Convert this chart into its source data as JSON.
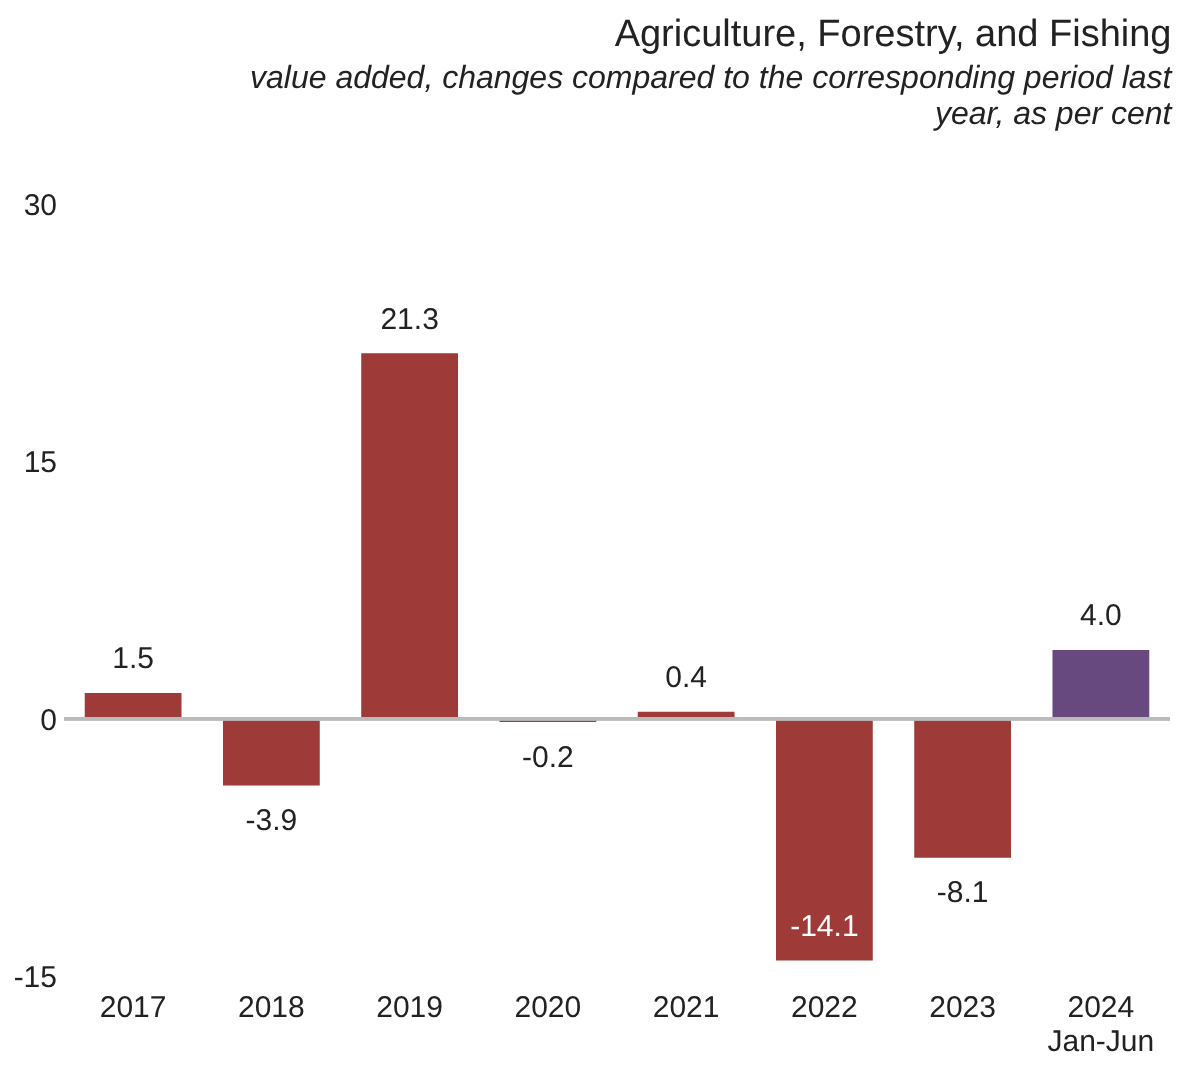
{
  "chart_data": {
    "type": "bar",
    "title": "Agriculture, Forestry, and Fishing",
    "subtitle": "value added, changes compared to the corresponding period last year, as per cent",
    "categories": [
      "2017",
      "2018",
      "2019",
      "2020",
      "2021",
      "2022",
      "2023",
      "2024\nJan-Jun"
    ],
    "values": [
      1.5,
      -3.9,
      21.3,
      -0.2,
      0.4,
      -14.1,
      -8.1,
      4.0
    ],
    "value_labels": [
      "1.5",
      "-3.9",
      "21.3",
      "-0.2",
      "0.4",
      "-14.1",
      "-8.1",
      "4.0"
    ],
    "colors": [
      "#9e3b38",
      "#9e3b38",
      "#9e3b38",
      "#9e3b38",
      "#9e3b38",
      "#9e3b38",
      "#9e3b38",
      "#67497f"
    ],
    "ylim": [
      -15,
      30
    ],
    "yticks": [
      30,
      15,
      0,
      -15
    ]
  }
}
